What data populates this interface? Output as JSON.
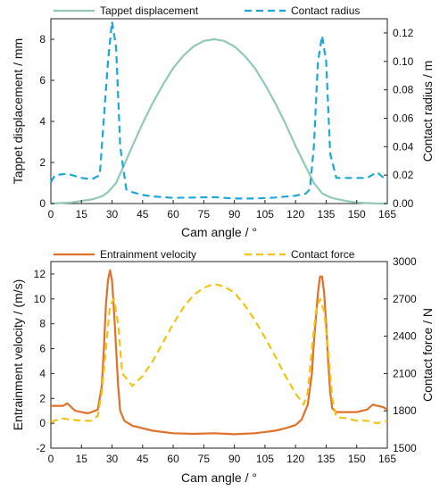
{
  "chart_data": [
    {
      "type": "line",
      "xlabel": "Cam angle / °",
      "ylabel": "Tappet displacement / mm",
      "y2label": "Contact radius / m",
      "xlim": [
        0,
        165
      ],
      "ylim": [
        0,
        9
      ],
      "y2lim": [
        0,
        0.13
      ],
      "xticks": [
        "0",
        "15",
        "30",
        "45",
        "60",
        "75",
        "90",
        "105",
        "120",
        "135",
        "150",
        "165"
      ],
      "yticks": [
        "0",
        "2",
        "4",
        "6",
        "8"
      ],
      "y2ticks": [
        "0.00",
        "0.02",
        "0.04",
        "0.06",
        "0.08",
        "0.10",
        "0.12"
      ],
      "legend_position": "top",
      "grid": false,
      "series": [
        {
          "name": "Tappet displacement",
          "axis": "left",
          "color": "#92c9b4",
          "dash": "solid",
          "x": [
            0,
            10,
            20,
            25,
            28,
            32,
            36,
            40,
            45,
            50,
            55,
            60,
            65,
            70,
            75,
            80,
            85,
            90,
            95,
            100,
            105,
            110,
            115,
            120,
            125,
            129,
            133,
            137,
            140,
            145,
            150,
            155,
            160,
            165
          ],
          "y": [
            0,
            0.05,
            0.2,
            0.35,
            0.55,
            1.0,
            1.9,
            2.8,
            3.9,
            4.9,
            5.8,
            6.6,
            7.2,
            7.65,
            7.92,
            8.0,
            7.92,
            7.65,
            7.2,
            6.6,
            5.8,
            4.9,
            3.9,
            2.8,
            1.8,
            1.0,
            0.5,
            0.3,
            0.22,
            0.12,
            0.05,
            0.02,
            0.0,
            0.0
          ]
        },
        {
          "name": "Contact radius",
          "axis": "right",
          "color": "#1aa8d8",
          "dash": "dashed",
          "x": [
            0,
            2,
            8,
            15,
            20,
            24,
            26,
            28,
            30,
            32,
            34,
            37,
            40,
            45,
            50,
            60,
            70,
            80,
            90,
            100,
            110,
            120,
            125,
            127,
            129,
            131,
            133,
            135,
            137,
            140,
            145,
            150,
            155,
            160,
            165
          ],
          "y": [
            0.015,
            0.02,
            0.021,
            0.018,
            0.017,
            0.02,
            0.06,
            0.1,
            0.128,
            0.11,
            0.04,
            0.01,
            0.008,
            0.006,
            0.005,
            0.004,
            0.0042,
            0.0045,
            0.0035,
            0.0035,
            0.0042,
            0.0055,
            0.007,
            0.01,
            0.04,
            0.1,
            0.118,
            0.1,
            0.035,
            0.018,
            0.018,
            0.018,
            0.018,
            0.022,
            0.016
          ]
        }
      ]
    },
    {
      "type": "line",
      "xlabel": "Cam angle / °",
      "ylabel": "Entrainment velocity / (m/s)",
      "y2label": "Contact force / N",
      "xlim": [
        0,
        165
      ],
      "ylim": [
        -2,
        13
      ],
      "y2lim": [
        1500,
        3000
      ],
      "xticks": [
        "0",
        "15",
        "30",
        "45",
        "60",
        "75",
        "90",
        "105",
        "120",
        "135",
        "150",
        "165"
      ],
      "yticks": [
        "-2",
        "0",
        "2",
        "4",
        "6",
        "8",
        "10",
        "12"
      ],
      "y2ticks": [
        "1500",
        "1800",
        "2100",
        "2400",
        "2700",
        "3000"
      ],
      "legend_position": "top",
      "grid": false,
      "series": [
        {
          "name": "Entrainment velocity",
          "axis": "left",
          "color": "#e0712b",
          "dash": "solid",
          "x": [
            0,
            2,
            6,
            8,
            10,
            12,
            15,
            18,
            20,
            23,
            25,
            26,
            27,
            28,
            29,
            30,
            31,
            32,
            33,
            34,
            36,
            40,
            45,
            50,
            60,
            70,
            80,
            90,
            100,
            110,
            115,
            120,
            123,
            126,
            128,
            129,
            130,
            131,
            132,
            133,
            134,
            135,
            136,
            137,
            138,
            140,
            145,
            150,
            155,
            158,
            160,
            163,
            165
          ],
          "y": [
            1.4,
            1.4,
            1.4,
            1.6,
            1.3,
            1.0,
            0.9,
            0.8,
            0.9,
            1.1,
            3.0,
            6.0,
            9.5,
            11.5,
            12.3,
            11.5,
            9.0,
            6.0,
            3.0,
            1.0,
            0.2,
            -0.2,
            -0.4,
            -0.6,
            -0.8,
            -0.85,
            -0.8,
            -0.88,
            -0.8,
            -0.6,
            -0.4,
            -0.15,
            0.3,
            1.5,
            4.0,
            6.5,
            8.5,
            10.5,
            11.8,
            11.8,
            10.5,
            8.0,
            5.0,
            2.5,
            1.2,
            0.9,
            0.9,
            0.9,
            1.1,
            1.5,
            1.4,
            1.3,
            1.1
          ]
        },
        {
          "name": "Contact force",
          "axis": "right",
          "color": "#f2c40f",
          "dash": "dashed",
          "x": [
            0,
            5,
            10,
            15,
            20,
            23,
            25,
            27,
            29,
            31,
            33,
            35,
            40,
            45,
            50,
            55,
            60,
            65,
            70,
            75,
            80,
            85,
            90,
            95,
            100,
            105,
            110,
            115,
            120,
            124,
            126,
            128,
            130,
            132,
            134,
            136,
            138,
            140,
            145,
            150,
            155,
            160,
            165
          ],
          "y": [
            1710,
            1740,
            1730,
            1720,
            1720,
            1760,
            1950,
            2300,
            2650,
            2700,
            2500,
            2100,
            2000,
            2080,
            2200,
            2350,
            2500,
            2630,
            2730,
            2790,
            2820,
            2800,
            2750,
            2650,
            2530,
            2390,
            2240,
            2080,
            1940,
            1850,
            1950,
            2300,
            2600,
            2700,
            2600,
            2300,
            1900,
            1750,
            1740,
            1720,
            1720,
            1700,
            1720
          ]
        }
      ]
    }
  ]
}
